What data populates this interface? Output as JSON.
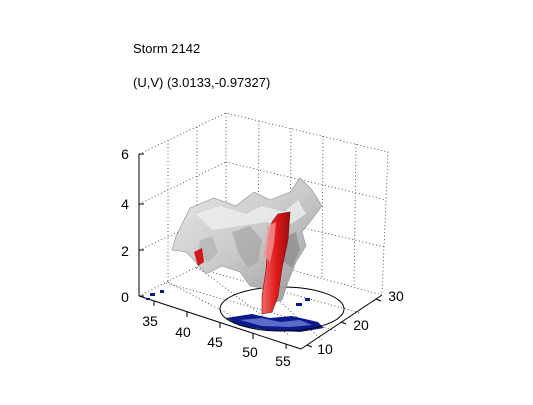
{
  "chart_data": {
    "type": "surface3d",
    "title": "Storm 2142",
    "subtitle": "(U,V) (3.0133,-0.97327)",
    "x_axis": {
      "range": [
        33,
        55
      ],
      "ticks": [
        35,
        40,
        45,
        50,
        55
      ]
    },
    "y_axis": {
      "range": [
        10,
        30
      ],
      "ticks": [
        10,
        20,
        30
      ]
    },
    "z_axis": {
      "range": [
        0,
        6
      ],
      "ticks": [
        0,
        2,
        4,
        6
      ]
    },
    "grid": true,
    "colors": {
      "outer_surface": "#c8c8c8",
      "core_surface": "#e01a1a",
      "ground_shadow": "#0a1a8c",
      "ellipse": "#000000"
    }
  }
}
